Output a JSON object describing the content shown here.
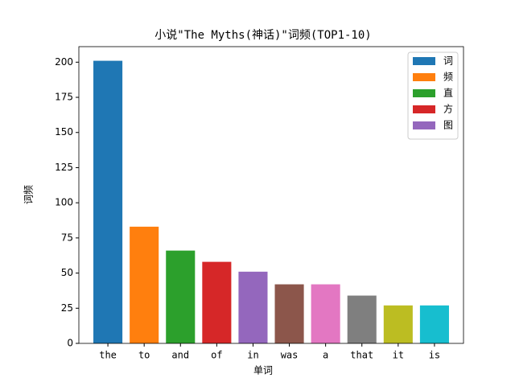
{
  "chart_data": {
    "type": "bar",
    "title": "小说\"The Myths(神话)\"词频(TOP1-10)",
    "x_label": "单词",
    "y_label": "词频",
    "categories": [
      "the",
      "to",
      "and",
      "of",
      "in",
      "was",
      "a",
      "that",
      "it",
      "is"
    ],
    "values": [
      201,
      83,
      66,
      58,
      51,
      42,
      42,
      34,
      27,
      27
    ],
    "colors": [
      "#1f77b4",
      "#ff7f0e",
      "#2ca02c",
      "#d62728",
      "#9467bd",
      "#8c564b",
      "#e377c2",
      "#7f7f7f",
      "#bcbd22",
      "#17becf"
    ],
    "ylim": [
      0,
      211.05
    ],
    "yticks": [
      0,
      25,
      50,
      75,
      100,
      125,
      150,
      175,
      200
    ],
    "legend": [
      "词",
      "频",
      "直",
      "方",
      "图"
    ],
    "legend_loc": "upper right"
  }
}
